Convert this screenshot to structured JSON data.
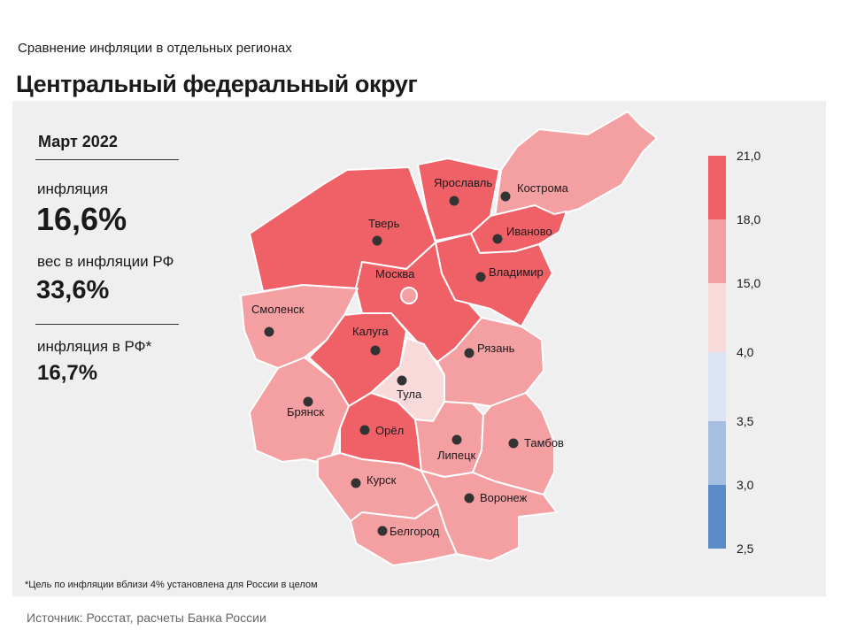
{
  "header": {
    "subtitle": "Сравнение инфляции  в отдельных регионах",
    "title": "Центральный федеральный округ"
  },
  "info": {
    "period": "Март 2022",
    "inflation_label": "инфляция",
    "inflation_value": "16,6%",
    "weight_label": "вес в инфляции РФ",
    "weight_value": "33,6%",
    "rf_label": "инфляция в РФ*",
    "rf_value": "16,7%"
  },
  "regions": [
    {
      "name": "Тверь",
      "color": "#ef6167"
    },
    {
      "name": "Ярославль",
      "color": "#ef6167"
    },
    {
      "name": "Кострома",
      "color": "#f4a0a3"
    },
    {
      "name": "Иваново",
      "color": "#ef6167"
    },
    {
      "name": "Москва",
      "color": "#ef6167"
    },
    {
      "name": "Владимир",
      "color": "#ef6167"
    },
    {
      "name": "Смоленск",
      "color": "#f4a0a3"
    },
    {
      "name": "Калуга",
      "color": "#ef6167"
    },
    {
      "name": "Тула",
      "color": "#f8dadb"
    },
    {
      "name": "Рязань",
      "color": "#f4a0a3"
    },
    {
      "name": "Брянск",
      "color": "#f4a0a3"
    },
    {
      "name": "Орёл",
      "color": "#ef6167"
    },
    {
      "name": "Липецк",
      "color": "#f4a0a3"
    },
    {
      "name": "Тамбов",
      "color": "#f4a0a3"
    },
    {
      "name": "Курск",
      "color": "#f4a0a3"
    },
    {
      "name": "Воронеж",
      "color": "#f4a0a3"
    },
    {
      "name": "Белгород",
      "color": "#f4a0a3"
    }
  ],
  "legend": {
    "ticks": [
      "21,0",
      "18,0",
      "15,0",
      "4,0",
      "3,5",
      "3,0",
      "2,5"
    ],
    "colors": [
      "#ef6167",
      "#f4a0a3",
      "#f8dadb",
      "#dde5f4",
      "#a6bfe0",
      "#5b8ac8"
    ]
  },
  "footnote": "*Цель по инфляции вблизи 4% установлена для России в целом",
  "source": "Источник: Росстат, расчеты Банка России"
}
